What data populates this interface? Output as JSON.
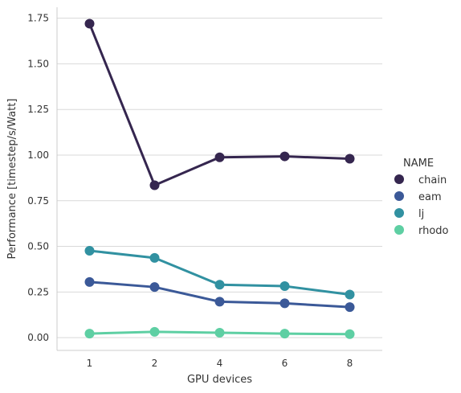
{
  "chart_data": {
    "type": "line",
    "xlabel": "GPU devices",
    "ylabel": "Performance [timestep/s/Watt]",
    "categories": [
      "1",
      "2",
      "4",
      "6",
      "8"
    ],
    "ylim": [
      -0.07,
      1.81
    ],
    "yticks": [
      "0.00",
      "0.25",
      "0.50",
      "0.75",
      "1.00",
      "1.25",
      "1.50",
      "1.75"
    ],
    "grid": "horizontal",
    "legend": {
      "title": "NAME",
      "placement": "right"
    },
    "series": [
      {
        "name": "chain",
        "color": "#35264f",
        "values": [
          1.72,
          0.835,
          0.988,
          0.993,
          0.98
        ]
      },
      {
        "name": "eam",
        "color": "#3b5998",
        "values": [
          0.305,
          0.277,
          0.197,
          0.188,
          0.167
        ]
      },
      {
        "name": "lj",
        "color": "#3191a1",
        "values": [
          0.476,
          0.437,
          0.29,
          0.282,
          0.236
        ]
      },
      {
        "name": "rhodo",
        "color": "#5ecfa3",
        "values": [
          0.022,
          0.032,
          0.027,
          0.022,
          0.019
        ]
      }
    ]
  }
}
